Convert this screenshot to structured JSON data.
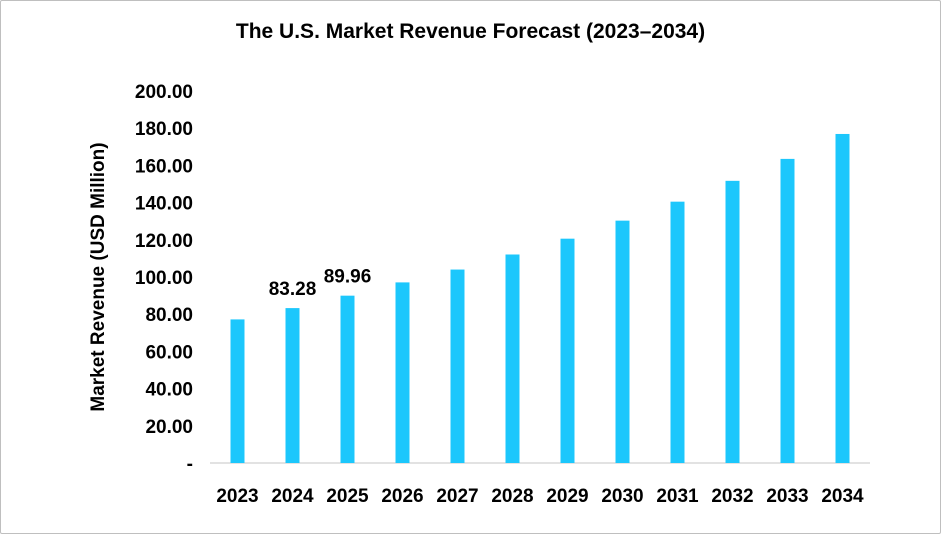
{
  "chart_data": {
    "type": "bar",
    "title": "The U.S. Market Revenue Forecast (2023–2034)",
    "xlabel": "",
    "ylabel": "Market Revenue (USD Million)",
    "ylim": [
      0,
      200
    ],
    "yticks": [
      0,
      20,
      40,
      60,
      80,
      100,
      120,
      140,
      160,
      180,
      200
    ],
    "ytick_labels": [
      "-",
      "20.00",
      "40.00",
      "60.00",
      "80.00",
      "100.00",
      "120.00",
      "140.00",
      "160.00",
      "180.00",
      "200.00"
    ],
    "categories": [
      "2023",
      "2024",
      "2025",
      "2026",
      "2027",
      "2028",
      "2029",
      "2030",
      "2031",
      "2032",
      "2033",
      "2034"
    ],
    "values": [
      77.2,
      83.28,
      89.96,
      97.1,
      104.0,
      112.1,
      120.6,
      130.3,
      140.5,
      151.7,
      163.5,
      176.9
    ],
    "data_labels": [
      null,
      "83.28",
      "89.96",
      null,
      null,
      null,
      null,
      null,
      null,
      null,
      null,
      null
    ],
    "bar_color": "#1CC7FC",
    "grid": false,
    "legend": "none"
  }
}
